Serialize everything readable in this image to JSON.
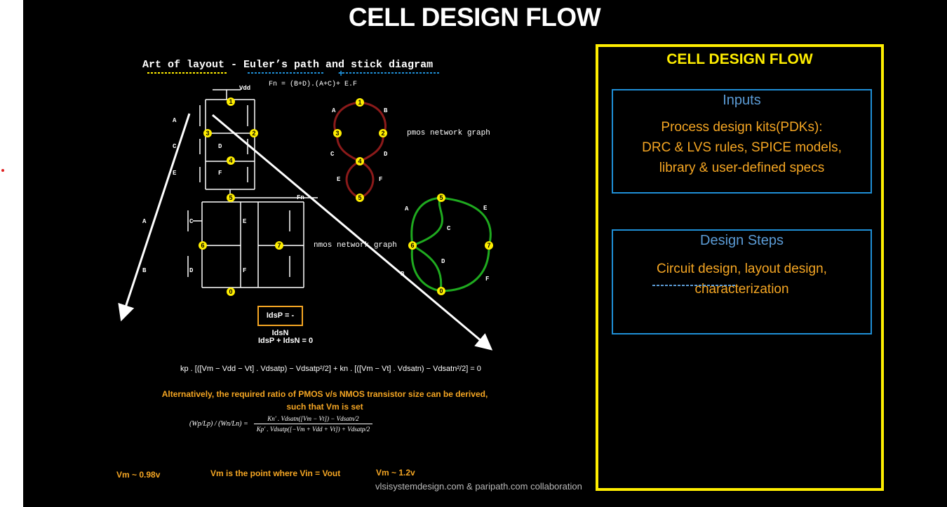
{
  "title": "CELL DESIGN FLOW",
  "left": {
    "subtitle": "Art of layout - Euler’s path and stick diagram",
    "fn_equation": "Fn = (B+D).(A+C)+ E.F",
    "vdd": "Vdd",
    "fn_out": "Fn",
    "pmos_graph_label": "pmos network graph",
    "nmos_graph_label": "nmos network graph",
    "schematic_nodes": [
      "1",
      "2",
      "3",
      "4",
      "5",
      "6",
      "7",
      "0"
    ],
    "schematic_labels": [
      "A",
      "B",
      "C",
      "D",
      "E",
      "F"
    ],
    "pmos_nodes": [
      "1",
      "2",
      "3",
      "4",
      "5"
    ],
    "pmos_edges": [
      "A",
      "B",
      "C",
      "D",
      "E",
      "F"
    ],
    "nmos_nodes": [
      "5",
      "6",
      "7",
      "0"
    ],
    "nmos_edges": [
      "A",
      "C",
      "D",
      "B",
      "E",
      "F"
    ],
    "ids_box": "IdsP = - IdsN",
    "ids_sum": "IdsP + IdsN = 0",
    "kp_equation": "kp . [([Vm − Vdd − Vt] . Vdsatp) − Vdsatp²/2] + kn . [([Vm − Vt] . Vdsatn) − Vdsatn²/2] = 0",
    "alternative_text_1": "Alternatively, the required ratio of PMOS v/s NMOS transistor size can be derived,",
    "alternative_text_2": "such that Vm is set",
    "ratio_lhs": "(Wp/Lp) / (Wn/Ln) =",
    "ratio_num": "Kn′ . Vdsatn([Vm − Vt]) − Vdsatn/2",
    "ratio_den": "Kp′ . Vdsatp([−Vm + Vdd + Vt]) + Vdsatp/2",
    "vm_left": "Vm ~ 0.98v",
    "vm_definition": "Vm is the point where Vin = Vout",
    "vm_right": "Vm ~ 1.2v",
    "credit": "vlsisystemdesign.com & paripath.com collaboration"
  },
  "panel": {
    "title": "CELL DESIGN FLOW",
    "inputs_heading": "Inputs",
    "inputs_line1": "Process design kits(PDKs):",
    "inputs_line2": "DRC & LVS rules, SPICE models,",
    "inputs_line3": "library & user-defined specs",
    "steps_heading": "Design Steps",
    "steps_line1": "Circuit design, layout design,",
    "steps_line2": "characterization"
  },
  "colors": {
    "accent_yellow": "#ffee00",
    "orange_text": "#f5a623",
    "box_blue": "#1f8fd6",
    "heading_blue": "#5b9bd5",
    "pmos_graph": "#8b1a1a",
    "nmos_graph": "#1faa1f"
  }
}
